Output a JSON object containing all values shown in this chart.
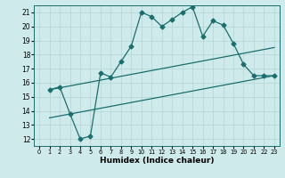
{
  "xlabel": "Humidex (Indice chaleur)",
  "bg_color": "#ceeaea",
  "grid_color": "#b8d8d8",
  "line_color": "#1a6e6e",
  "xlim": [
    -0.5,
    23.5
  ],
  "ylim": [
    11.5,
    21.5
  ],
  "xticks": [
    0,
    1,
    2,
    3,
    4,
    5,
    6,
    7,
    8,
    9,
    10,
    11,
    12,
    13,
    14,
    15,
    16,
    17,
    18,
    19,
    20,
    21,
    22,
    23
  ],
  "yticks": [
    12,
    13,
    14,
    15,
    16,
    17,
    18,
    19,
    20,
    21
  ],
  "line1_x": [
    1,
    2,
    3,
    4,
    5,
    6,
    7,
    8,
    9,
    10,
    11,
    12,
    13,
    14,
    15,
    16,
    17,
    18,
    19,
    20,
    21,
    22,
    23
  ],
  "line1_y": [
    15.5,
    15.7,
    13.8,
    12.0,
    12.2,
    16.7,
    16.4,
    17.5,
    18.6,
    21.0,
    20.7,
    20.0,
    20.5,
    21.0,
    21.4,
    19.3,
    20.4,
    20.1,
    18.8,
    17.3,
    16.5,
    16.5,
    16.5
  ],
  "line2_x": [
    1,
    23
  ],
  "line2_y": [
    15.5,
    18.5
  ],
  "line3_x": [
    1,
    23
  ],
  "line3_y": [
    13.5,
    16.5
  ],
  "markersize": 2.5,
  "linewidth": 0.9
}
